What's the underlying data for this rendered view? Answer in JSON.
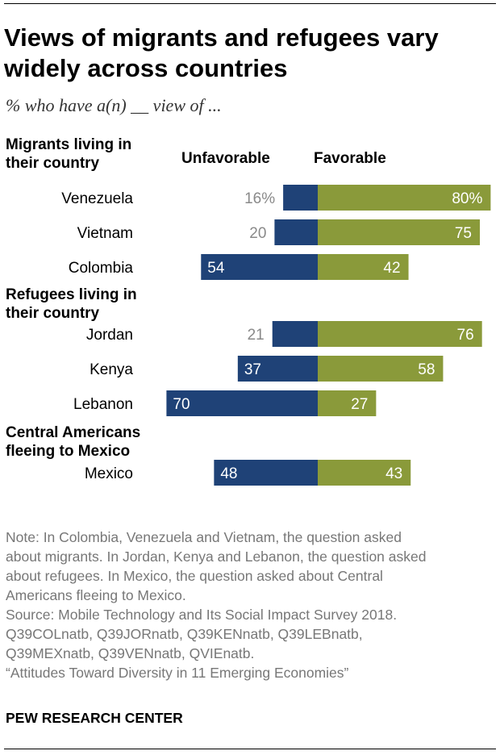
{
  "title": "Views of migrants and refugees vary widely across countries",
  "subtitle": "% who have a(n) __ view of ...",
  "column_headers": {
    "unfavorable": "Unfavorable",
    "favorable": "Favorable"
  },
  "groups": [
    {
      "title": "Migrants living in their country"
    },
    {
      "title": "Refugees living in their country"
    },
    {
      "title": "Central Americans fleeing to Mexico"
    }
  ],
  "colors": {
    "unfavorable": "#1f4277",
    "favorable": "#8a9a3a",
    "first_label_outside": "#8a8a8a"
  },
  "chart_data": {
    "type": "bar",
    "orientation": "horizontal-diverging",
    "categories": [
      "Venezuela",
      "Vietnam",
      "Colombia",
      "Jordan",
      "Kenya",
      "Lebanon",
      "Mexico"
    ],
    "groups_index": [
      0,
      0,
      0,
      1,
      1,
      1,
      2
    ],
    "series": [
      {
        "name": "Unfavorable",
        "values": [
          16,
          20,
          54,
          21,
          37,
          70,
          48
        ],
        "labels": [
          "16%",
          "20",
          "54",
          "21",
          "37",
          "70",
          "48"
        ]
      },
      {
        "name": "Favorable",
        "values": [
          80,
          75,
          42,
          76,
          58,
          27,
          43
        ],
        "labels": [
          "80%",
          "75",
          "42",
          "76",
          "58",
          "27",
          "43"
        ]
      }
    ],
    "xlim": [
      0,
      100
    ]
  },
  "notes": [
    "Note: In Colombia, Venezuela and Vietnam, the question asked",
    "about migrants. In Jordan, Kenya and Lebanon, the question asked",
    "about refugees. In Mexico, the question asked about Central",
    "Americans fleeing to Mexico.",
    "Source: Mobile Technology and Its Social Impact Survey 2018.",
    "Q39COLnatb, Q39JORnatb, Q39KENnatb, Q39LEBnatb,",
    "Q39MEXnatb, Q39VENnatb, QVIEnatb.",
    "“Attitudes Toward Diversity in 11 Emerging Economies”"
  ],
  "brand": "PEW RESEARCH CENTER"
}
